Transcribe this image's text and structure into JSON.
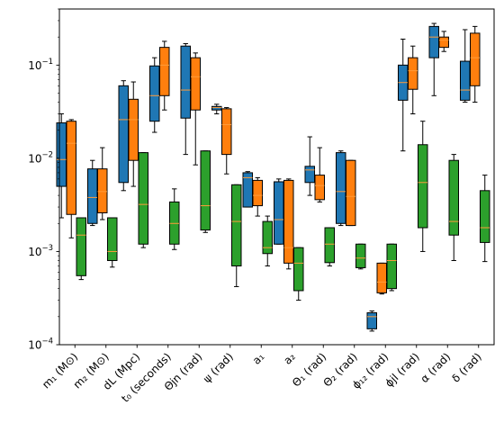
{
  "chart_data": {
    "type": "box",
    "yscale": "log",
    "ylim": [
      0.0001,
      0.4
    ],
    "ytick_labels": [
      {
        "value": 0.0001,
        "base": "10",
        "exp": "−4"
      },
      {
        "value": 0.001,
        "base": "10",
        "exp": "−3"
      },
      {
        "value": 0.01,
        "base": "10",
        "exp": "−2"
      },
      {
        "value": 0.1,
        "base": "10",
        "exp": "−1"
      }
    ],
    "categories": [
      "m₁ (M⊙)",
      "m₂ (M⊙)",
      "dL (Mpc)",
      "t₀ (seconds)",
      "Θjn (rad)",
      "ψ (rad)",
      "a₁",
      "a₂",
      "Θ₁ (rad)",
      "Θ₂ (rad)",
      "ϕ₁₂ (rad)",
      "ϕjl (rad)",
      "α (rad)",
      "δ (rad)"
    ],
    "colors": {
      "series1": "#1f77b4",
      "series2": "#ff7f0e",
      "series3": "#2ca02c",
      "median": "#ff9c3a"
    },
    "series": [
      {
        "boxes": [
          {
            "category": 0,
            "whislo": 0.0023,
            "q1": 0.005,
            "med": 0.0097,
            "q3": 0.024,
            "whishi": 0.03
          },
          {
            "category": 1,
            "whislo": 0.0019,
            "q1": 0.002,
            "med": 0.0038,
            "q3": 0.0077,
            "whishi": 0.0095
          },
          {
            "category": 2,
            "whislo": 0.0045,
            "q1": 0.0055,
            "med": 0.026,
            "q3": 0.06,
            "whishi": 0.068
          },
          {
            "category": 3,
            "whislo": 0.019,
            "q1": 0.025,
            "med": 0.047,
            "q3": 0.098,
            "whishi": 0.12
          },
          {
            "category": 4,
            "whislo": 0.011,
            "q1": 0.027,
            "med": 0.054,
            "q3": 0.16,
            "whishi": 0.17
          },
          {
            "category": 5,
            "whislo": 0.03,
            "q1": 0.033,
            "med": 0.035,
            "q3": 0.036,
            "whishi": 0.038
          },
          {
            "category": 6,
            "whislo": 0.003,
            "q1": 0.003,
            "med": 0.0062,
            "q3": 0.007,
            "whishi": 0.0072
          },
          {
            "category": 7,
            "whislo": 0.0012,
            "q1": 0.0012,
            "med": 0.0022,
            "q3": 0.0056,
            "whishi": 0.006
          },
          {
            "category": 8,
            "whislo": 0.004,
            "q1": 0.0055,
            "med": 0.0075,
            "q3": 0.0082,
            "whishi": 0.017
          },
          {
            "category": 9,
            "whislo": 0.0019,
            "q1": 0.002,
            "med": 0.0044,
            "q3": 0.0115,
            "whishi": 0.012
          },
          {
            "category": 10,
            "whislo": 0.00014,
            "q1": 0.000148,
            "med": 0.0002,
            "q3": 0.00022,
            "whishi": 0.00023
          },
          {
            "category": 11,
            "whislo": 0.012,
            "q1": 0.042,
            "med": 0.065,
            "q3": 0.1,
            "whishi": 0.19
          },
          {
            "category": 12,
            "whislo": 0.047,
            "q1": 0.12,
            "med": 0.2,
            "q3": 0.26,
            "whishi": 0.28
          },
          {
            "category": 13,
            "whislo": 0.04,
            "q1": 0.042,
            "med": 0.054,
            "q3": 0.11,
            "whishi": 0.24
          }
        ]
      },
      {
        "boxes": [
          {
            "category": 0,
            "whislo": 0.0014,
            "q1": 0.0025,
            "med": 0.0145,
            "q3": 0.025,
            "whishi": 0.026
          },
          {
            "category": 1,
            "whislo": 0.0022,
            "q1": 0.0026,
            "med": 0.0044,
            "q3": 0.0077,
            "whishi": 0.013
          },
          {
            "category": 2,
            "whislo": 0.005,
            "q1": 0.0095,
            "med": 0.026,
            "q3": 0.043,
            "whishi": 0.066
          },
          {
            "category": 3,
            "whislo": 0.033,
            "q1": 0.047,
            "med": 0.1,
            "q3": 0.155,
            "whishi": 0.18
          },
          {
            "category": 4,
            "whislo": 0.0085,
            "q1": 0.033,
            "med": 0.075,
            "q3": 0.12,
            "whishi": 0.135
          },
          {
            "category": 5,
            "whislo": 0.0068,
            "q1": 0.011,
            "med": 0.023,
            "q3": 0.034,
            "whishi": 0.035
          },
          {
            "category": 6,
            "whislo": 0.0024,
            "q1": 0.0031,
            "med": 0.004,
            "q3": 0.0058,
            "whishi": 0.0062
          },
          {
            "category": 7,
            "whislo": 0.00065,
            "q1": 0.00075,
            "med": 0.0011,
            "q3": 0.0058,
            "whishi": 0.006
          },
          {
            "category": 8,
            "whislo": 0.0034,
            "q1": 0.0036,
            "med": 0.0051,
            "q3": 0.0066,
            "whishi": 0.013
          },
          {
            "category": 9,
            "whislo": 0.0019,
            "q1": 0.0019,
            "med": 0.0039,
            "q3": 0.0095,
            "whishi": 0.0095
          },
          {
            "category": 10,
            "whislo": 0.00035,
            "q1": 0.00036,
            "med": 0.00047,
            "q3": 0.00075,
            "whishi": 0.00075
          },
          {
            "category": 11,
            "whislo": 0.03,
            "q1": 0.055,
            "med": 0.087,
            "q3": 0.12,
            "whishi": 0.16
          },
          {
            "category": 12,
            "whislo": 0.14,
            "q1": 0.155,
            "med": 0.185,
            "q3": 0.2,
            "whishi": 0.23
          },
          {
            "category": 13,
            "whislo": 0.04,
            "q1": 0.06,
            "med": 0.12,
            "q3": 0.22,
            "whishi": 0.26
          }
        ]
      },
      {
        "boxes": [
          {
            "category": 0,
            "whislo": 0.0005,
            "q1": 0.00055,
            "med": 0.0015,
            "q3": 0.0023,
            "whishi": 0.0023
          },
          {
            "category": 1,
            "whislo": 0.00068,
            "q1": 0.0008,
            "med": 0.001,
            "q3": 0.0023,
            "whishi": 0.0023
          },
          {
            "category": 2,
            "whislo": 0.0011,
            "q1": 0.0012,
            "med": 0.0032,
            "q3": 0.0115,
            "whishi": 0.0115
          },
          {
            "category": 3,
            "whislo": 0.00105,
            "q1": 0.0012,
            "med": 0.002,
            "q3": 0.0034,
            "whishi": 0.0047
          },
          {
            "category": 4,
            "whislo": 0.0016,
            "q1": 0.0017,
            "med": 0.0031,
            "q3": 0.012,
            "whishi": 0.012
          },
          {
            "category": 5,
            "whislo": 0.00042,
            "q1": 0.0007,
            "med": 0.0021,
            "q3": 0.0052,
            "whishi": 0.0052
          },
          {
            "category": 6,
            "whislo": 0.0007,
            "q1": 0.00095,
            "med": 0.0011,
            "q3": 0.0021,
            "whishi": 0.0024
          },
          {
            "category": 7,
            "whislo": 0.0003,
            "q1": 0.00038,
            "med": 0.00075,
            "q3": 0.0011,
            "whishi": 0.0011
          },
          {
            "category": 8,
            "whislo": 0.0007,
            "q1": 0.00076,
            "med": 0.0012,
            "q3": 0.0018,
            "whishi": 0.0018
          },
          {
            "category": 9,
            "whislo": 0.00065,
            "q1": 0.00067,
            "med": 0.00085,
            "q3": 0.0012,
            "whishi": 0.0012
          },
          {
            "category": 10,
            "whislo": 0.00038,
            "q1": 0.0004,
            "med": 0.0008,
            "q3": 0.0012,
            "whishi": 0.0012
          },
          {
            "category": 11,
            "whislo": 0.001,
            "q1": 0.0018,
            "med": 0.0055,
            "q3": 0.014,
            "whishi": 0.025
          },
          {
            "category": 12,
            "whislo": 0.0008,
            "q1": 0.0015,
            "med": 0.0021,
            "q3": 0.0095,
            "whishi": 0.011
          },
          {
            "category": 13,
            "whislo": 0.00078,
            "q1": 0.00125,
            "med": 0.0018,
            "q3": 0.0045,
            "whishi": 0.0066
          }
        ]
      }
    ]
  }
}
